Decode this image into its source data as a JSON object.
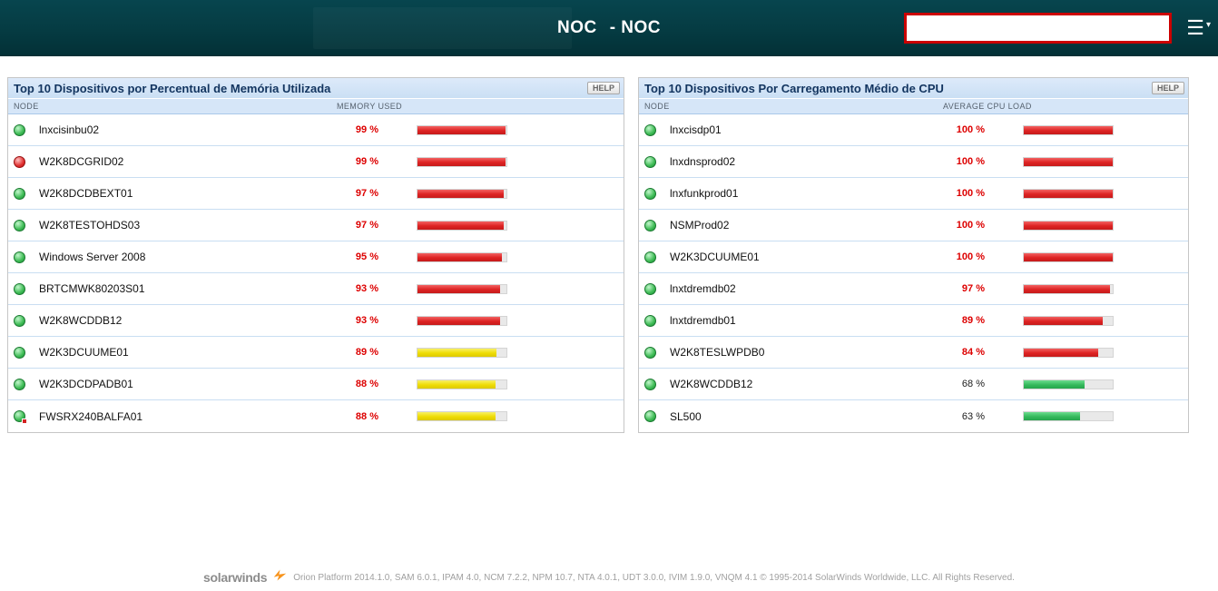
{
  "header": {
    "title_left": "NOC",
    "title_right": "- NOC",
    "search_value": "",
    "search_placeholder": ""
  },
  "panels": [
    {
      "title": "Top 10 Dispositivos por Percentual de Memória Utilizada",
      "help_label": "HELP",
      "columns": {
        "node": "NODE",
        "metric": "MEMORY USED"
      },
      "rows": [
        {
          "name": "lnxcisinbu02",
          "status": "up",
          "value": "99 %",
          "pct": 99,
          "bar": "red",
          "value_color": "red"
        },
        {
          "name": "W2K8DCGRID02",
          "status": "down",
          "value": "99 %",
          "pct": 99,
          "bar": "red",
          "value_color": "red"
        },
        {
          "name": "W2K8DCDBEXT01",
          "status": "up",
          "value": "97 %",
          "pct": 97,
          "bar": "red",
          "value_color": "red"
        },
        {
          "name": "W2K8TESTOHDS03",
          "status": "up",
          "value": "97 %",
          "pct": 97,
          "bar": "red",
          "value_color": "red"
        },
        {
          "name": "Windows Server 2008",
          "status": "up",
          "value": "95 %",
          "pct": 95,
          "bar": "red",
          "value_color": "red"
        },
        {
          "name": "BRTCMWK80203S01",
          "status": "up",
          "value": "93 %",
          "pct": 93,
          "bar": "red",
          "value_color": "red"
        },
        {
          "name": "W2K8WCDDB12",
          "status": "up",
          "value": "93 %",
          "pct": 93,
          "bar": "red",
          "value_color": "red"
        },
        {
          "name": "W2K3DCUUME01",
          "status": "up",
          "value": "89 %",
          "pct": 89,
          "bar": "yellow",
          "value_color": "red"
        },
        {
          "name": "W2K3DCDPADB01",
          "status": "up",
          "value": "88 %",
          "pct": 88,
          "bar": "yellow",
          "value_color": "red"
        },
        {
          "name": "FWSRX240BALFA01",
          "status": "up",
          "badge": true,
          "value": "88 %",
          "pct": 88,
          "bar": "yellow",
          "value_color": "red"
        }
      ]
    },
    {
      "title": "Top 10 Dispositivos Por Carregamento Médio de CPU",
      "help_label": "HELP",
      "columns": {
        "node": "NODE",
        "metric": "AVERAGE CPU LOAD"
      },
      "rows": [
        {
          "name": "lnxcisdp01",
          "status": "up",
          "value": "100 %",
          "pct": 100,
          "bar": "red",
          "value_color": "red"
        },
        {
          "name": "lnxdnsprod02",
          "status": "up",
          "value": "100 %",
          "pct": 100,
          "bar": "red",
          "value_color": "red"
        },
        {
          "name": "lnxfunkprod01",
          "status": "up",
          "value": "100 %",
          "pct": 100,
          "bar": "red",
          "value_color": "red"
        },
        {
          "name": "NSMProd02",
          "status": "up",
          "value": "100 %",
          "pct": 100,
          "bar": "red",
          "value_color": "red"
        },
        {
          "name": "W2K3DCUUME01",
          "status": "up",
          "value": "100 %",
          "pct": 100,
          "bar": "red",
          "value_color": "red"
        },
        {
          "name": "lnxtdremdb02",
          "status": "up",
          "value": "97 %",
          "pct": 97,
          "bar": "red",
          "value_color": "red"
        },
        {
          "name": "lnxtdremdb01",
          "status": "up",
          "value": "89 %",
          "pct": 89,
          "bar": "red",
          "value_color": "red"
        },
        {
          "name": "W2K8TESLWPDB0",
          "status": "up",
          "value": "84 %",
          "pct": 84,
          "bar": "red",
          "value_color": "red"
        },
        {
          "name": "W2K8WCDDB12",
          "status": "up",
          "value": "68 %",
          "pct": 68,
          "bar": "green",
          "value_color": "black"
        },
        {
          "name": "SL500",
          "status": "up",
          "value": "63 %",
          "pct": 63,
          "bar": "green",
          "value_color": "black"
        }
      ]
    }
  ],
  "footer": {
    "logo_text": "solarwinds",
    "text": "Orion Platform 2014.1.0, SAM 6.0.1, IPAM 4.0, NCM 7.2.2, NPM 10.7, NTA 4.0.1, UDT 3.0.0, IVIM 1.9.0, VNQM 4.1 © 1995-2014 SolarWinds Worldwide, LLC. All Rights Reserved."
  }
}
